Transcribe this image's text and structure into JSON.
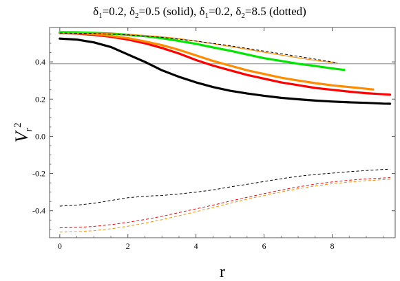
{
  "chart_data": {
    "type": "line",
    "title_parts": [
      {
        "t": "δ",
        "sub": false
      },
      {
        "t": "1",
        "sub": true
      },
      {
        "t": "=0.2, ",
        "sub": false
      },
      {
        "t": "δ",
        "sub": false
      },
      {
        "t": "2",
        "sub": true
      },
      {
        "t": "=0.5 (solid), ",
        "sub": false
      },
      {
        "t": "δ",
        "sub": false
      },
      {
        "t": "1",
        "sub": true
      },
      {
        "t": "=0.2, ",
        "sub": false
      },
      {
        "t": "δ",
        "sub": false
      },
      {
        "t": "2",
        "sub": true
      },
      {
        "t": "=8.5 (dotted)",
        "sub": false
      }
    ],
    "xlabel": "r",
    "ylabel": {
      "main": "V",
      "sub": "r",
      "sup": "2"
    },
    "xlim": [
      -0.3,
      9.85
    ],
    "ylim": [
      -0.545,
      0.585
    ],
    "xticks": [
      0,
      2,
      4,
      6,
      8
    ],
    "xtick_labels": [
      "0",
      "2",
      "4",
      "6",
      "8"
    ],
    "yticks": [
      -0.4,
      -0.2,
      0.0,
      0.2,
      0.4
    ],
    "ytick_labels": [
      "-0.4",
      "-0.2",
      "0.0",
      "0.2",
      "0.4"
    ],
    "reference_line_y": 0.39,
    "series": [
      {
        "color": "#000000",
        "style": "solid",
        "width": 3.2,
        "x": [
          0,
          0.5,
          1,
          1.5,
          2,
          2.5,
          3,
          3.5,
          4,
          4.5,
          5,
          5.5,
          6,
          6.5,
          7,
          7.5,
          8,
          8.5,
          9,
          9.5,
          9.7
        ],
        "y": [
          0.525,
          0.52,
          0.505,
          0.48,
          0.44,
          0.4,
          0.355,
          0.32,
          0.29,
          0.265,
          0.245,
          0.23,
          0.218,
          0.207,
          0.199,
          0.192,
          0.187,
          0.183,
          0.18,
          0.176,
          0.175
        ]
      },
      {
        "color": "#ff0000",
        "style": "solid",
        "width": 3.2,
        "x": [
          0,
          0.5,
          1,
          1.5,
          2,
          2.5,
          3,
          3.5,
          4,
          4.5,
          5,
          5.5,
          6,
          6.5,
          7,
          7.5,
          8,
          8.5,
          9,
          9.5,
          9.7
        ],
        "y": [
          0.555,
          0.552,
          0.545,
          0.535,
          0.52,
          0.5,
          0.475,
          0.445,
          0.41,
          0.38,
          0.355,
          0.33,
          0.31,
          0.29,
          0.275,
          0.26,
          0.25,
          0.24,
          0.232,
          0.226,
          0.224
        ]
      },
      {
        "color": "#ff8c00",
        "style": "solid",
        "width": 3.2,
        "x": [
          0,
          0.5,
          1,
          1.5,
          2,
          2.5,
          3,
          3.5,
          4,
          4.5,
          5,
          5.5,
          6,
          6.5,
          7,
          7.5,
          8,
          8.5,
          9.2
        ],
        "y": [
          0.557,
          0.555,
          0.55,
          0.54,
          0.528,
          0.51,
          0.49,
          0.465,
          0.435,
          0.405,
          0.38,
          0.355,
          0.335,
          0.315,
          0.3,
          0.286,
          0.274,
          0.265,
          0.252
        ]
      },
      {
        "color": "#00e600",
        "style": "solid",
        "width": 3.2,
        "x": [
          0,
          0.5,
          1,
          1.5,
          2,
          2.5,
          3,
          3.5,
          4,
          4.5,
          5,
          5.5,
          6,
          6.5,
          7,
          7.5,
          8,
          8.35
        ],
        "y": [
          0.56,
          0.559,
          0.556,
          0.552,
          0.546,
          0.538,
          0.527,
          0.513,
          0.497,
          0.478,
          0.46,
          0.44,
          0.42,
          0.405,
          0.39,
          0.378,
          0.365,
          0.357
        ]
      },
      {
        "color": "#ff8c00",
        "style": "solid",
        "width": 1.3,
        "x": [
          0,
          0.5,
          1,
          1.5,
          2,
          2.5,
          3,
          3.5,
          4,
          4.5,
          5,
          5.5,
          6,
          6.5,
          7,
          7.5,
          8,
          8.15
        ],
        "y": [
          0.557,
          0.557,
          0.555,
          0.552,
          0.548,
          0.542,
          0.535,
          0.525,
          0.512,
          0.498,
          0.483,
          0.468,
          0.452,
          0.437,
          0.422,
          0.408,
          0.397,
          0.394
        ]
      },
      {
        "color": "#000000",
        "style": "dashed",
        "width": 1,
        "x": [
          0,
          0.5,
          1,
          1.5,
          2,
          2.5,
          3,
          3.5,
          4,
          4.5,
          5,
          5.5,
          6,
          6.5,
          7,
          7.5,
          8,
          8.5,
          9,
          9.5,
          9.7
        ],
        "y": [
          -0.375,
          -0.37,
          -0.36,
          -0.345,
          -0.33,
          -0.322,
          -0.318,
          -0.31,
          -0.3,
          -0.288,
          -0.272,
          -0.258,
          -0.243,
          -0.228,
          -0.215,
          -0.205,
          -0.198,
          -0.19,
          -0.184,
          -0.178,
          -0.177
        ]
      },
      {
        "color": "#ff0000",
        "style": "dashed",
        "width": 1,
        "x": [
          0,
          0.5,
          1,
          1.5,
          2,
          2.5,
          3,
          3.5,
          4,
          4.5,
          5,
          5.5,
          6,
          6.5,
          7,
          7.5,
          8,
          8.5,
          9,
          9.5,
          9.7
        ],
        "y": [
          -0.492,
          -0.49,
          -0.484,
          -0.475,
          -0.462,
          -0.447,
          -0.43,
          -0.41,
          -0.39,
          -0.37,
          -0.348,
          -0.328,
          -0.308,
          -0.289,
          -0.272,
          -0.257,
          -0.245,
          -0.236,
          -0.229,
          -0.224,
          -0.222
        ]
      },
      {
        "color": "#ff8c00",
        "style": "dashed",
        "width": 1,
        "x": [
          0,
          0.5,
          1,
          1.5,
          2,
          2.5,
          3,
          3.5,
          4,
          4.5,
          5,
          5.5,
          6,
          6.5,
          7,
          7.5,
          8,
          8.5,
          9,
          9.5,
          9.7
        ],
        "y": [
          -0.515,
          -0.513,
          -0.507,
          -0.497,
          -0.483,
          -0.467,
          -0.448,
          -0.427,
          -0.405,
          -0.383,
          -0.36,
          -0.338,
          -0.318,
          -0.299,
          -0.282,
          -0.267,
          -0.255,
          -0.246,
          -0.239,
          -0.233,
          -0.231
        ]
      },
      {
        "color": "#000000",
        "style": "dashed",
        "width": 1,
        "x": [
          0,
          1,
          2,
          3,
          4,
          5,
          6,
          7,
          8,
          8.1
        ],
        "y": [
          0.555,
          0.553,
          0.545,
          0.532,
          0.512,
          0.487,
          0.458,
          0.43,
          0.4,
          0.397
        ]
      }
    ]
  }
}
